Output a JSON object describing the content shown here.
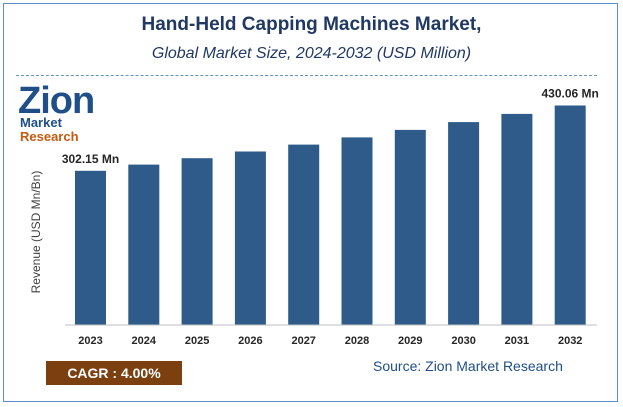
{
  "title": "Hand-Held Capping Machines Market,",
  "subtitle": "Global Market Size, 2024-2032 (USD Million)",
  "logo": {
    "word": "Zion",
    "sub_a": "Market ",
    "sub_b": "Research"
  },
  "cagr": "CAGR : 4.00%",
  "source": "Source: Zion Market Research",
  "colors": {
    "bar": "#2f5b8a",
    "title": "#1f3864",
    "accent": "#c55a11",
    "cagr_bg": "#7b3f10"
  },
  "chart_data": {
    "type": "bar",
    "categories": [
      "2023",
      "2024",
      "2025",
      "2026",
      "2027",
      "2028",
      "2029",
      "2030",
      "2031",
      "2032"
    ],
    "values": [
      302.15,
      314.2,
      326.8,
      339.9,
      353.5,
      367.6,
      382.3,
      397.6,
      413.5,
      430.06
    ],
    "data_labels": {
      "0": "302.15 Mn",
      "9": "430.06 Mn"
    },
    "ylabel": "Revenue (USD Mn/Bn)",
    "xlabel": "",
    "ylim": [
      0,
      480
    ],
    "grid": false,
    "legend": "none"
  }
}
